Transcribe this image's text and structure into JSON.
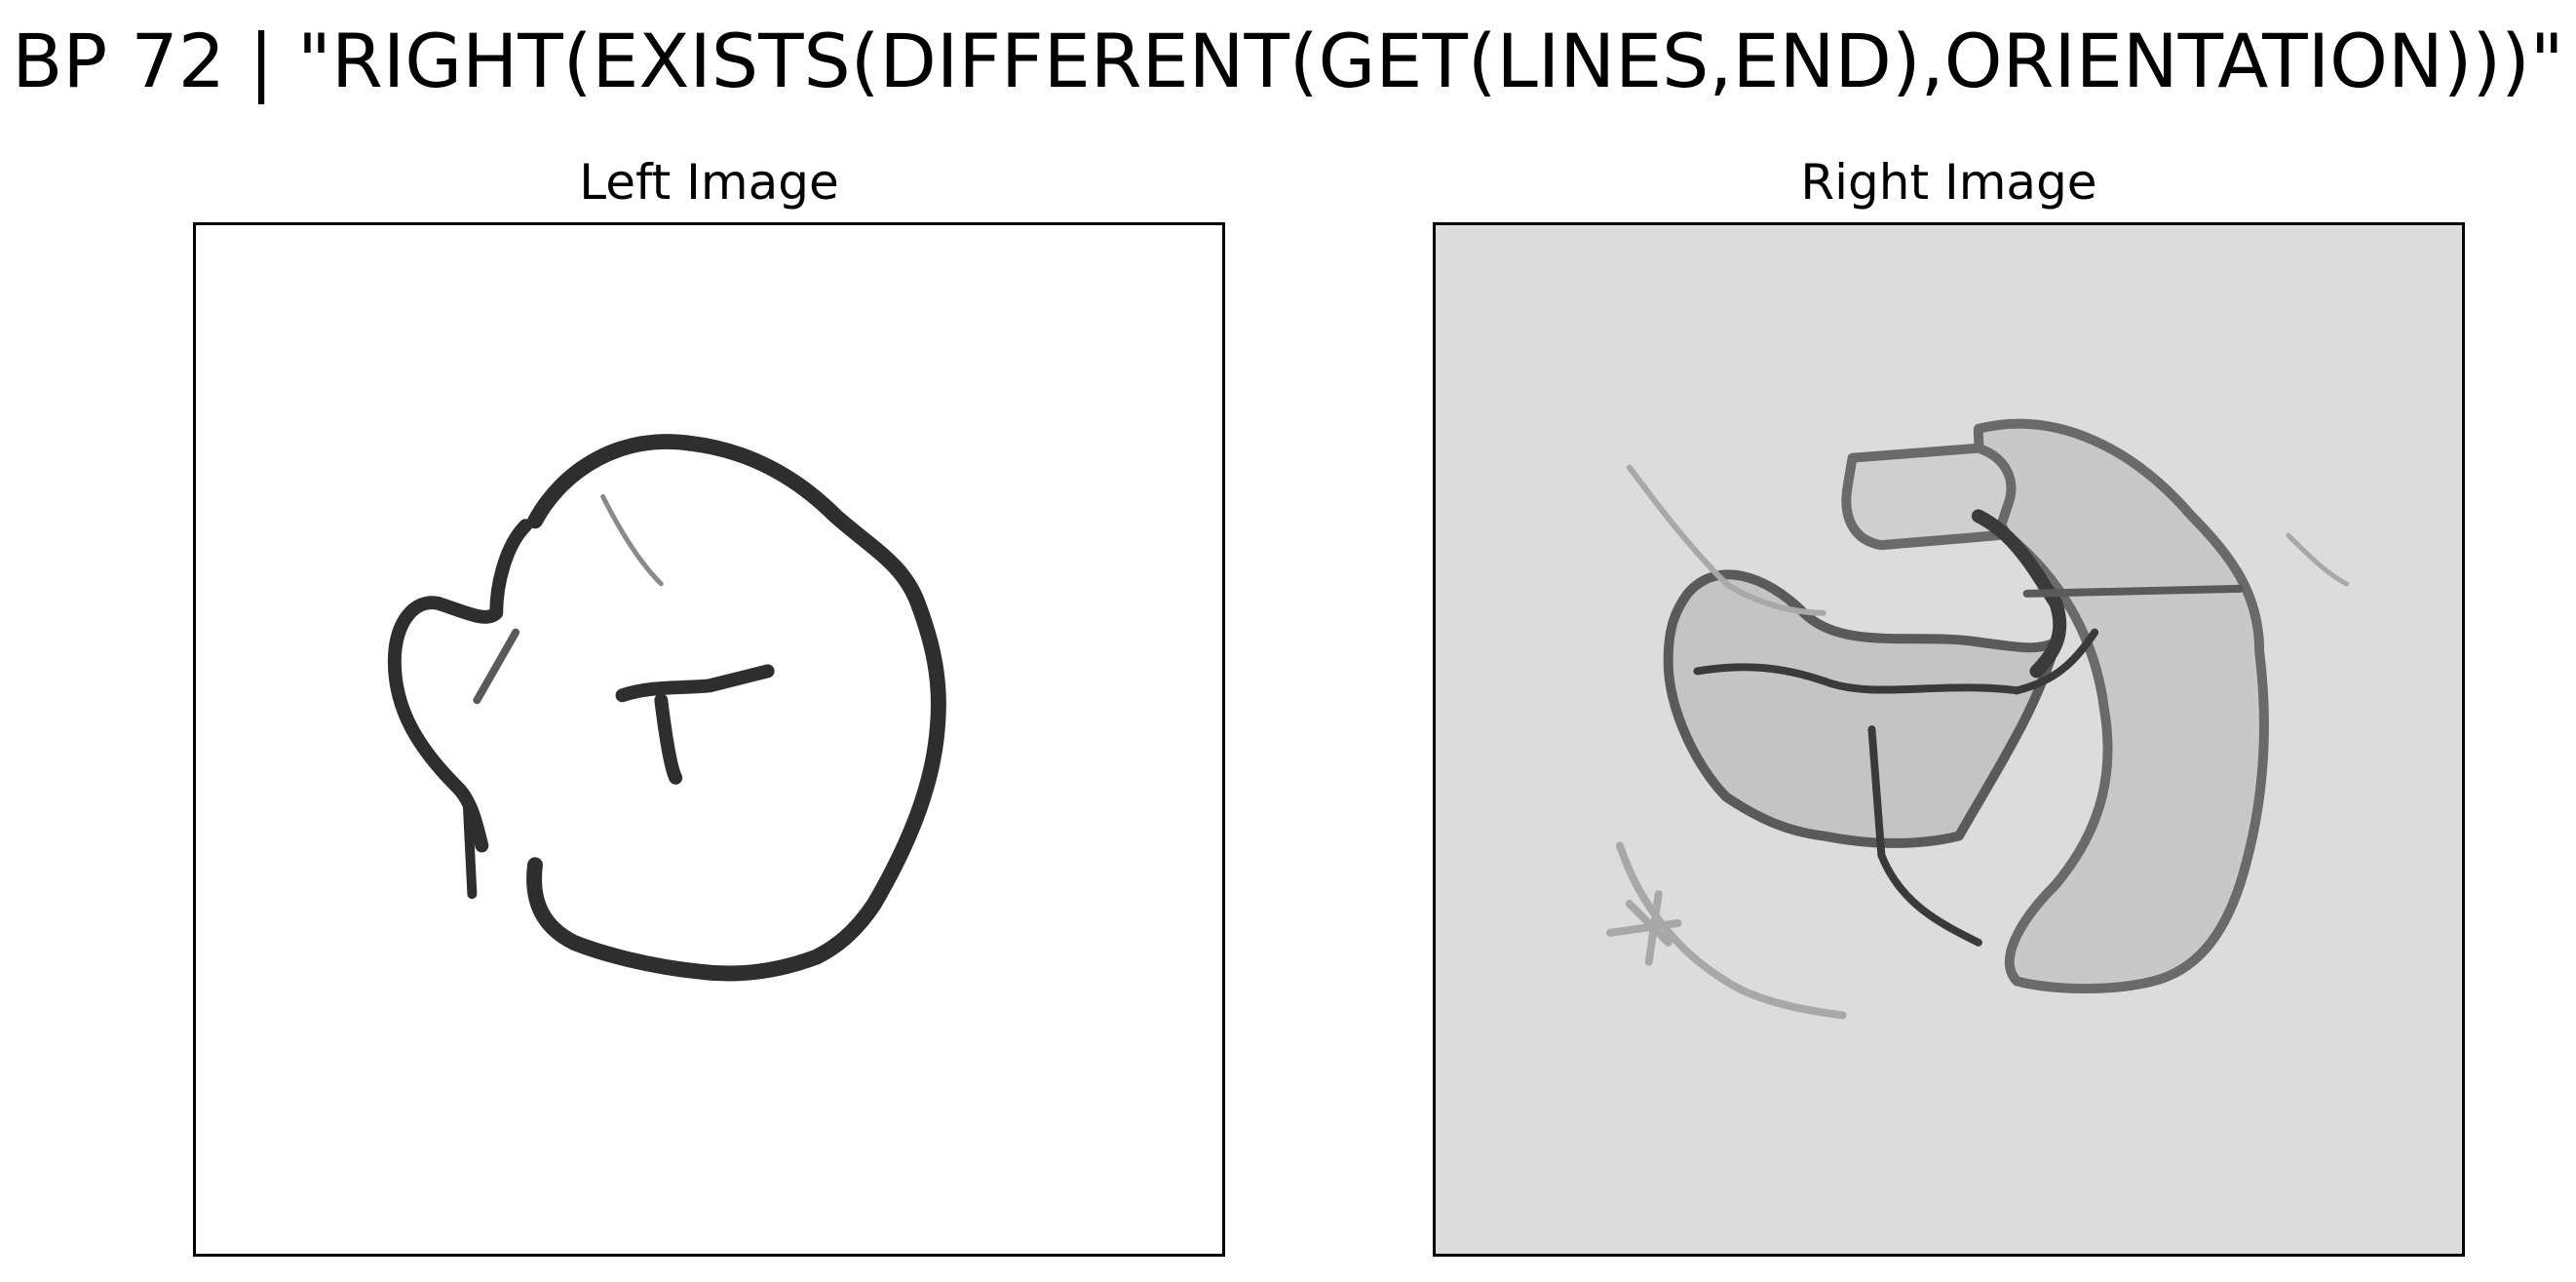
{
  "figure": {
    "title": "BP 72 | \"RIGHT(EXISTS(DIFFERENT(GET(LINES,END),ORIENTATION)))\""
  },
  "panels": {
    "left": {
      "title": "Left Image",
      "background": "#ffffff"
    },
    "right": {
      "title": "Right Image",
      "background": "#dcdcdc"
    }
  },
  "colors": {
    "stroke_dark": "#2e2e2e",
    "stroke_mid": "#5a5a5a",
    "fill_gray": "#c4c4c4",
    "stroke_light": "#a8a8a8"
  }
}
